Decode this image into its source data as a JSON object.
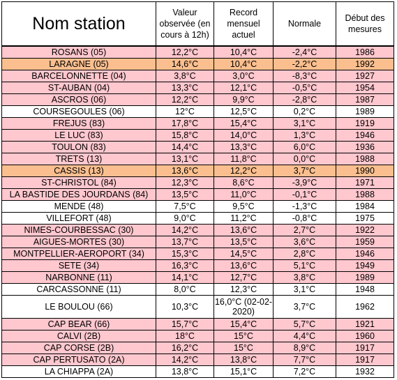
{
  "table": {
    "headers": [
      "Nom station",
      "Valeur observée (en cours à 12h)",
      "Record mensuel actuel",
      "Normale",
      "Début des mesures"
    ],
    "colors": {
      "pink": "#ffc7ce",
      "orange": "#fbbf8f",
      "white": "#ffffff"
    },
    "rows": [
      {
        "station": "ROSANS (05)",
        "valeur": "12,2°C",
        "record": "10,4°C",
        "normale": "-2,4°C",
        "debut": "1986",
        "color": "pink"
      },
      {
        "station": "LARAGNE (05)",
        "valeur": "14,6°C",
        "record": "10,4°C",
        "normale": "-2,2°C",
        "debut": "1992",
        "color": "orange"
      },
      {
        "station": "BARCELONNETTE (04)",
        "valeur": "3,8°C",
        "record": "3,0°C",
        "normale": "-8,3°C",
        "debut": "1927",
        "color": "pink"
      },
      {
        "station": "ST-AUBAN (04)",
        "valeur": "13,3°C",
        "record": "12,1°C",
        "normale": "-0,5°C",
        "debut": "1954",
        "color": "pink"
      },
      {
        "station": "ASCROS (06)",
        "valeur": "12,2°C",
        "record": "9,9°C",
        "normale": "-2,8°C",
        "debut": "1987",
        "color": "pink"
      },
      {
        "station": "COURSEGOULES (06)",
        "valeur": "12°C",
        "record": "12,5°C",
        "normale": "0,2°C",
        "debut": "1989",
        "color": "white"
      },
      {
        "station": "FREJUS (83)",
        "valeur": "17,8°C",
        "record": "15,4°C",
        "normale": "3,1°C",
        "debut": "1919",
        "color": "pink"
      },
      {
        "station": "LE LUC (83)",
        "valeur": "15,8°C",
        "record": "14,0°C",
        "normale": "1,3°C",
        "debut": "1946",
        "color": "pink"
      },
      {
        "station": "TOULON (83)",
        "valeur": "14,4°C",
        "record": "13,3°C",
        "normale": "6,0°C",
        "debut": "1936",
        "color": "pink"
      },
      {
        "station": "TRETS (13)",
        "valeur": "13,1°C",
        "record": "11,8°C",
        "normale": "0,0°C",
        "debut": "1988",
        "color": "pink"
      },
      {
        "station": "CASSIS (13)",
        "valeur": "13,6°C",
        "record": "12,2°C",
        "normale": "3,7°C",
        "debut": "1990",
        "color": "orange"
      },
      {
        "station": "ST-CHRISTOL (84)",
        "valeur": "12,3°C",
        "record": "8,6°C",
        "normale": "-3,9°C",
        "debut": "1971",
        "color": "pink"
      },
      {
        "station": "LA BASTIDE DES JOURDANS (84)",
        "valeur": "13,5°C",
        "record": "11,0°C",
        "normale": "-0,1°C",
        "debut": "1988",
        "color": "pink"
      },
      {
        "station": "MENDE (48)",
        "valeur": "7,5°C",
        "record": "9,5°C",
        "normale": "-1,3°C",
        "debut": "1984",
        "color": "white"
      },
      {
        "station": "VILLEFORT (48)",
        "valeur": "9,0°C",
        "record": "11,2°C",
        "normale": "-0,8°C",
        "debut": "1975",
        "color": "white"
      },
      {
        "station": "NIMES-COURBESSAC (30)",
        "valeur": "14,2°C",
        "record": "13,6°C",
        "normale": "2,7°C",
        "debut": "1922",
        "color": "pink"
      },
      {
        "station": "AIGUES-MORTES (30)",
        "valeur": "13,7°C",
        "record": "13,5°C",
        "normale": "3,6°C",
        "debut": "1959",
        "color": "pink"
      },
      {
        "station": "MONTPELLIER-AEROPORT (34)",
        "valeur": "15,3°C",
        "record": "14,5°C",
        "normale": "2,8°C",
        "debut": "1946",
        "color": "pink"
      },
      {
        "station": "SETE (34)",
        "valeur": "16,3°C",
        "record": "13,6°C",
        "normale": "5,1°C",
        "debut": "1949",
        "color": "pink"
      },
      {
        "station": "NARBONNE (11)",
        "valeur": "14,1°C",
        "record": "12,7°C",
        "normale": "3,8°C",
        "debut": "1989",
        "color": "pink"
      },
      {
        "station": "CARCASSONNE (11)",
        "valeur": "8,0°C",
        "record": "12,3°C",
        "normale": "3,1°C",
        "debut": "1948",
        "color": "white"
      },
      {
        "station": "LE BOULOU (66)",
        "valeur": "10,3°C",
        "record": "16,0°C (02-02-2020)",
        "normale": "3,7°C",
        "debut": "1962",
        "color": "white",
        "tall": true
      },
      {
        "station": "CAP BEAR (66)",
        "valeur": "15,7°C",
        "record": "15,4°C",
        "normale": "5,7°C",
        "debut": "1921",
        "color": "pink"
      },
      {
        "station": "CALVI (2B)",
        "valeur": "18°C",
        "record": "15°C",
        "normale": "4,4°C",
        "debut": "1960",
        "color": "pink"
      },
      {
        "station": "CAP CORSE (2B)",
        "valeur": "16,2°C",
        "record": "15°C",
        "normale": "8,9°C",
        "debut": "1917",
        "color": "pink"
      },
      {
        "station": "CAP PERTUSATO (2A)",
        "valeur": "14,2°C",
        "record": "13,8°C",
        "normale": "7,7°C",
        "debut": "1917",
        "color": "pink"
      },
      {
        "station": "LA CHIAPPA (2A)",
        "valeur": "13,8°C",
        "record": "15,1°C",
        "normale": "7,2°C",
        "debut": "1932",
        "color": "white"
      }
    ]
  }
}
